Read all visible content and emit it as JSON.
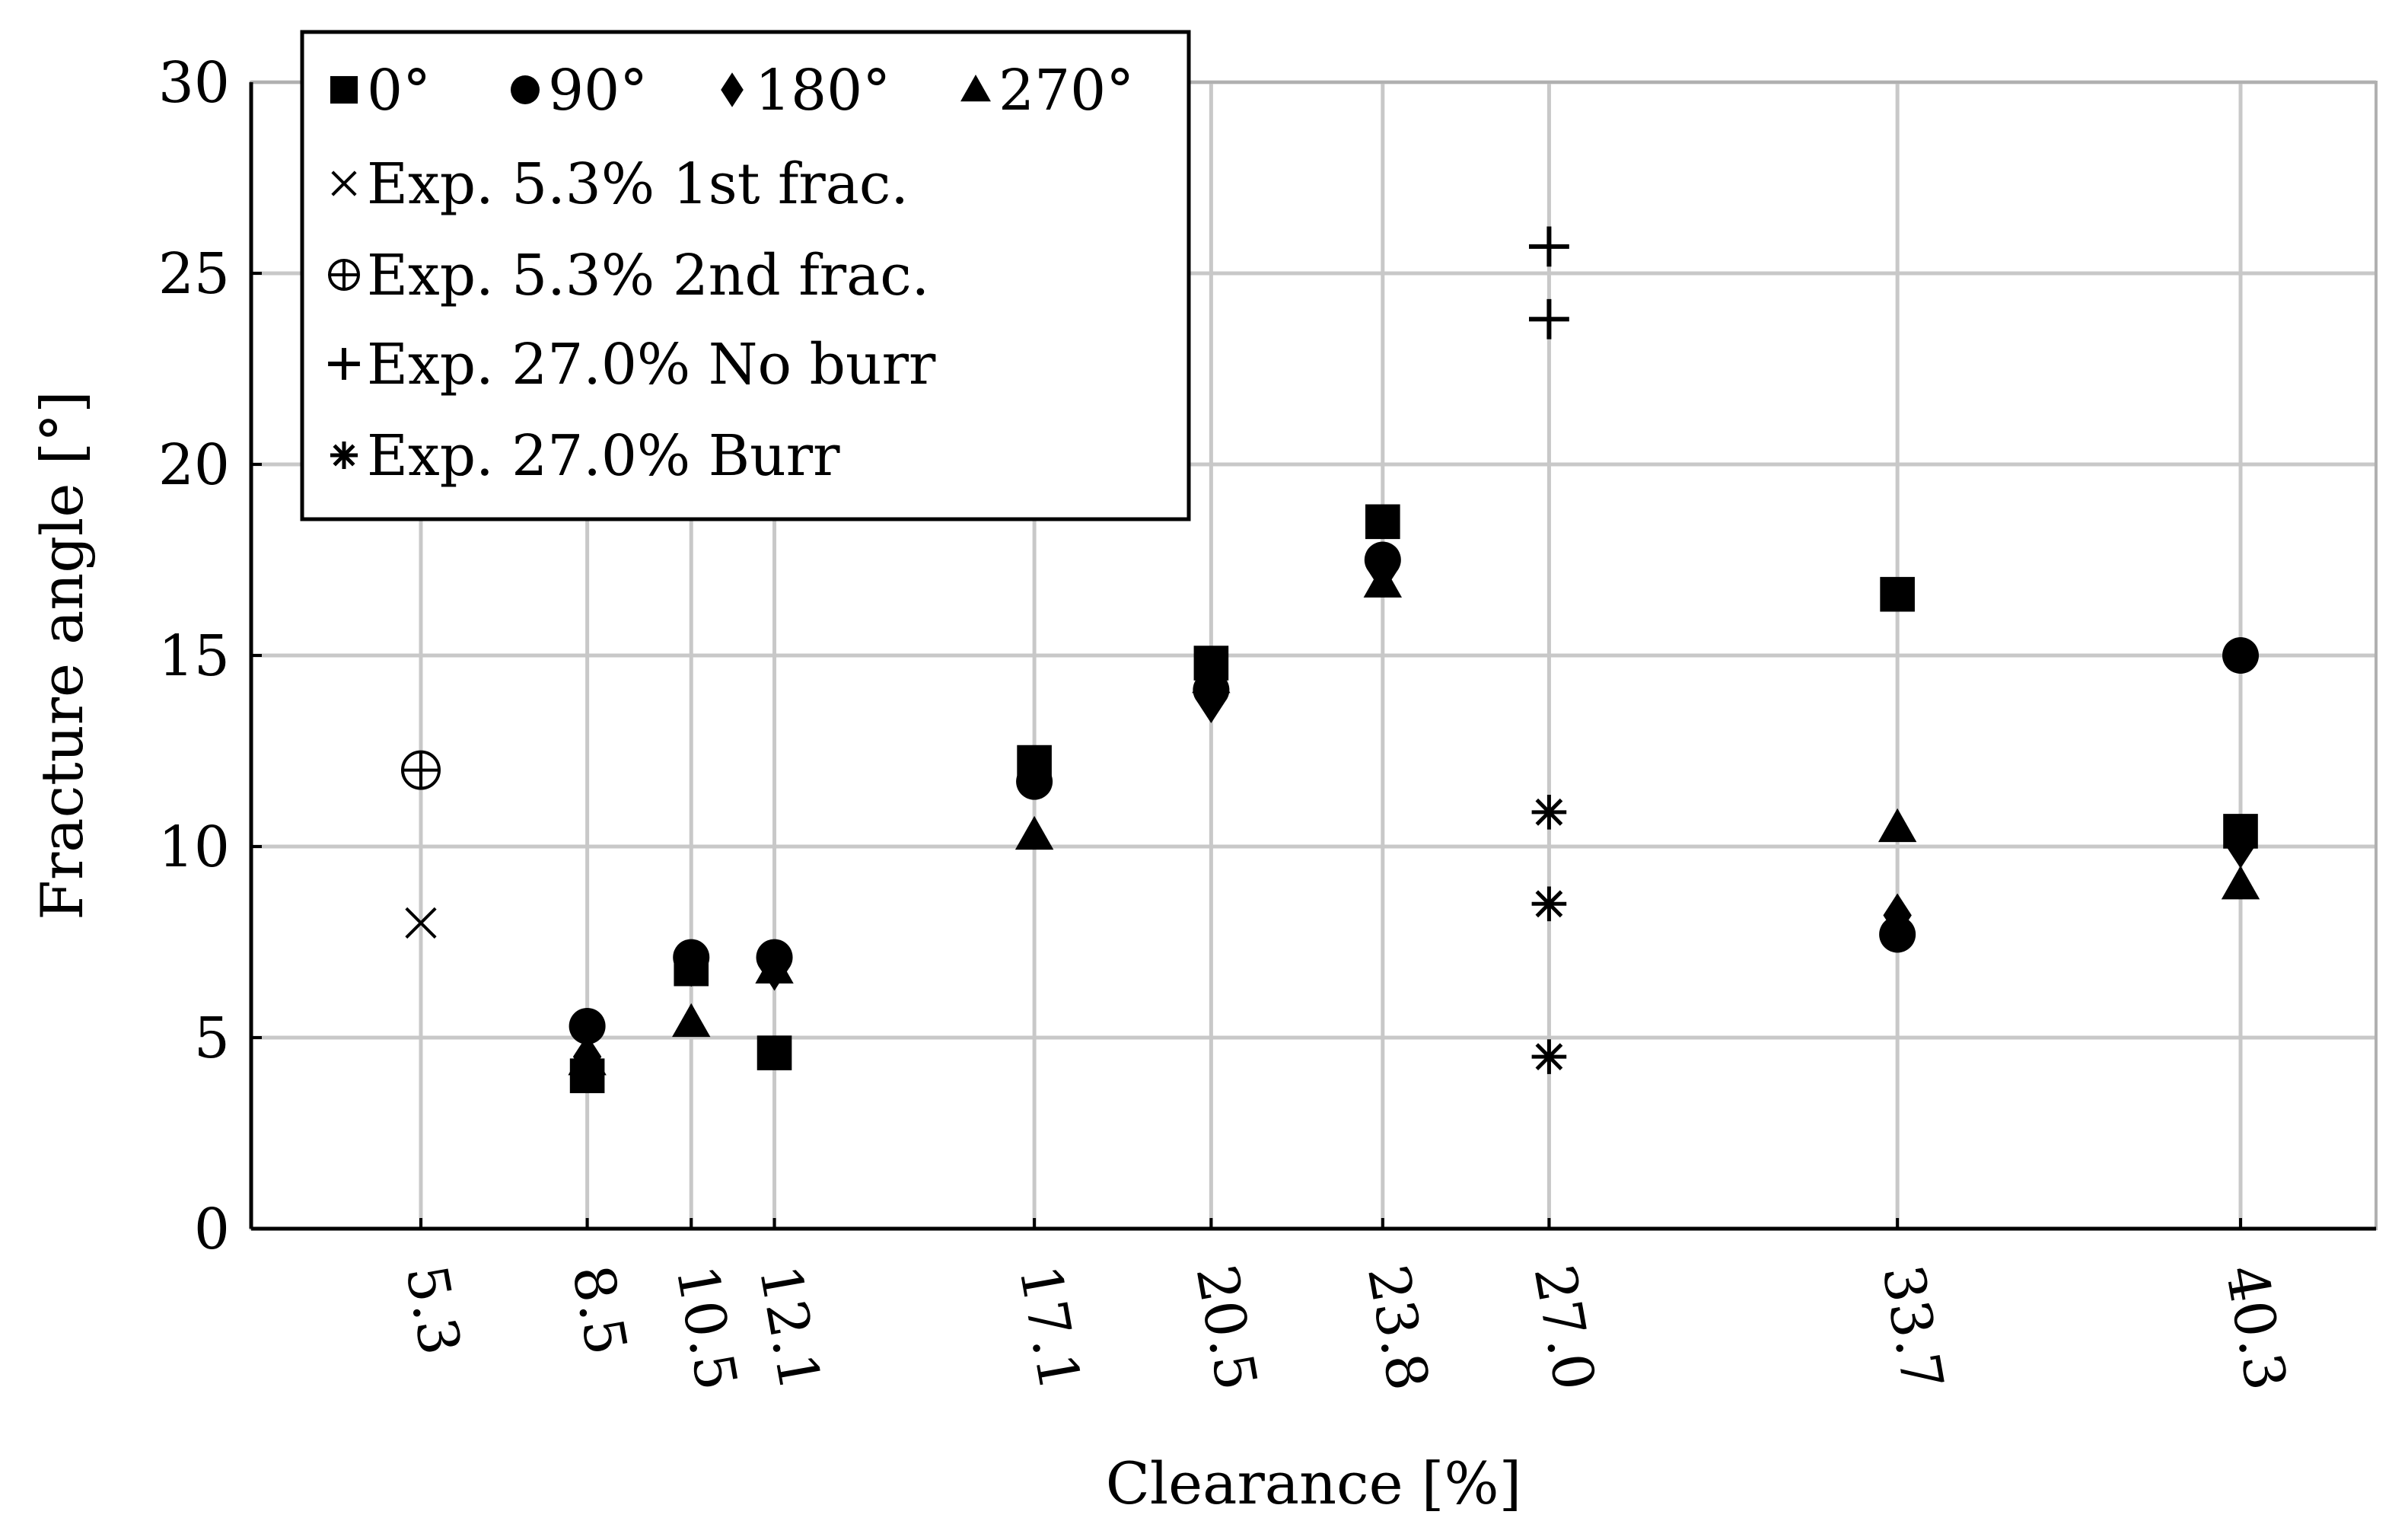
{
  "chart_data": {
    "type": "scatter",
    "xlabel": "Clearance [%]",
    "ylabel": "Fracture angle [°]",
    "ylim": [
      0,
      30
    ],
    "yticks": [
      "0",
      "5",
      "10",
      "15",
      "20",
      "25",
      "30"
    ],
    "x_categories": [
      "5.3",
      "8.5",
      "10.5",
      "12.1",
      "17.1",
      "20.5",
      "23.8",
      "27.0",
      "33.7",
      "40.3"
    ],
    "grid": true,
    "legend_position": "top-left",
    "series": [
      {
        "name": "0°",
        "marker": "square",
        "points": [
          [
            8.5,
            4.0
          ],
          [
            10.5,
            6.8
          ],
          [
            12.1,
            4.6
          ],
          [
            17.1,
            12.2
          ],
          [
            20.5,
            14.8
          ],
          [
            23.8,
            18.5
          ],
          [
            33.7,
            16.6
          ],
          [
            40.3,
            10.4
          ]
        ]
      },
      {
        "name": "90°",
        "marker": "circle",
        "points": [
          [
            8.5,
            5.3
          ],
          [
            10.5,
            7.1
          ],
          [
            12.1,
            7.1
          ],
          [
            17.1,
            11.7
          ],
          [
            20.5,
            14.1
          ],
          [
            23.8,
            17.5
          ],
          [
            33.7,
            7.7
          ],
          [
            40.3,
            15.0
          ]
        ]
      },
      {
        "name": "180°",
        "marker": "diamond",
        "points": [
          [
            8.5,
            4.5
          ],
          [
            10.5,
            6.9
          ],
          [
            12.1,
            6.8
          ],
          [
            17.1,
            12.0
          ],
          [
            20.5,
            13.8
          ],
          [
            23.8,
            17.2
          ],
          [
            33.7,
            8.2
          ],
          [
            40.3,
            10.0
          ]
        ]
      },
      {
        "name": "270°",
        "marker": "triangle",
        "points": [
          [
            8.5,
            4.4
          ],
          [
            10.5,
            5.4
          ],
          [
            12.1,
            6.8
          ],
          [
            17.1,
            10.3
          ],
          [
            20.5,
            14.4
          ],
          [
            23.8,
            16.9
          ],
          [
            33.7,
            10.5
          ],
          [
            40.3,
            9.0
          ]
        ]
      },
      {
        "name": "Exp. 5.3% 1st frac.",
        "marker": "x",
        "points": [
          [
            5.3,
            8.0
          ]
        ]
      },
      {
        "name": "Exp. 5.3% 2nd frac.",
        "marker": "oplus",
        "points": [
          [
            5.3,
            12.0
          ]
        ]
      },
      {
        "name": "Exp. 27.0% No burr",
        "marker": "plus",
        "points": [
          [
            27.0,
            25.7
          ],
          [
            27.0,
            23.8
          ]
        ]
      },
      {
        "name": "Exp. 27.0% Burr",
        "marker": "asterisk",
        "points": [
          [
            27.0,
            10.9
          ],
          [
            27.0,
            8.5
          ],
          [
            27.0,
            4.5
          ]
        ]
      }
    ]
  }
}
